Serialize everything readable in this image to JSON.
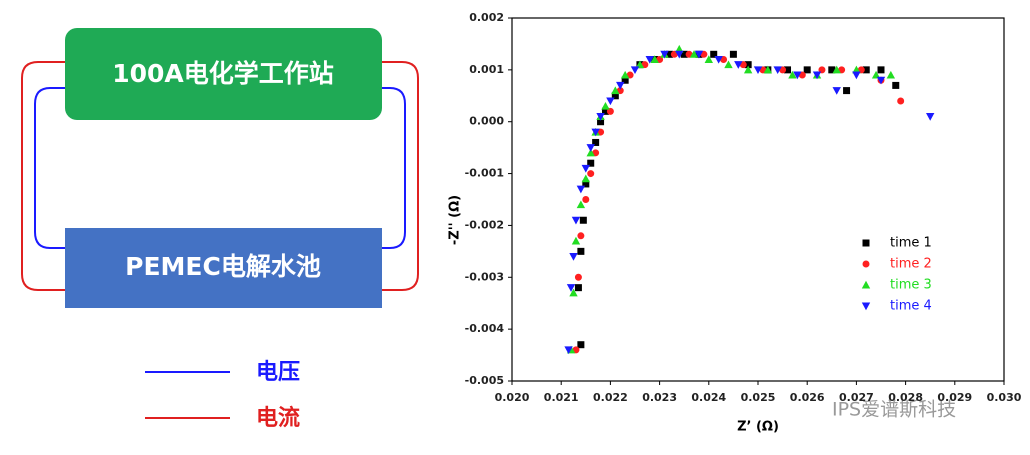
{
  "diagram": {
    "boxes": [
      "100A电化学工作站",
      "PEMEC电解水池"
    ],
    "legend": [
      "电压",
      "电流"
    ],
    "watermark": "IPS爱谱斯科技"
  },
  "chart_data": {
    "type": "scatter",
    "xlabel": "Z’  (Ω)",
    "ylabel": "-Z'' (Ω)",
    "xlim": [
      0.02,
      0.03
    ],
    "ylim": [
      -0.005,
      0.002
    ],
    "xticks": [
      {
        "value": 0.02,
        "label": "0.020"
      },
      0.021,
      0.022,
      0.023,
      0.024,
      0.025,
      0.026,
      0.027,
      0.028,
      0.029,
      {
        "value": 0.03,
        "label": "0.030"
      }
    ],
    "yticks": [
      -0.005,
      -0.004,
      -0.003,
      -0.002,
      -0.001,
      {
        "value": 0,
        "label": "0.000"
      },
      0.001,
      0.002
    ],
    "series": [
      {
        "name": "time 1",
        "color": "#000000",
        "marker": "square",
        "x": [
          0.0214,
          0.02135,
          0.0214,
          0.02145,
          0.0215,
          0.0216,
          0.0217,
          0.0218,
          0.0219,
          0.0221,
          0.0223,
          0.0226,
          0.0229,
          0.0232,
          0.0235,
          0.0238,
          0.0241,
          0.0245,
          0.0248,
          0.0252,
          0.0256,
          0.026,
          0.0265,
          0.0268,
          0.0272,
          0.0275,
          0.0278
        ],
        "values": [
          -0.0043,
          -0.0032,
          -0.0025,
          -0.0019,
          -0.0012,
          -0.0008,
          -0.0004,
          0.0,
          0.0002,
          0.0005,
          0.0008,
          0.0011,
          0.0012,
          0.0013,
          0.0013,
          0.0013,
          0.0013,
          0.0013,
          0.0011,
          0.001,
          0.001,
          0.001,
          0.001,
          0.0006,
          0.001,
          0.001,
          0.0007
        ]
      },
      {
        "name": "time 2",
        "color": "#ff2020",
        "marker": "circle",
        "x": [
          0.0213,
          0.02135,
          0.0214,
          0.0215,
          0.0216,
          0.0217,
          0.0218,
          0.022,
          0.0222,
          0.0224,
          0.0227,
          0.023,
          0.0233,
          0.0236,
          0.0239,
          0.0243,
          0.0247,
          0.0251,
          0.0255,
          0.0259,
          0.0263,
          0.0267,
          0.0271,
          0.0275,
          0.0279
        ],
        "values": [
          -0.0044,
          -0.003,
          -0.0022,
          -0.0015,
          -0.001,
          -0.0006,
          -0.0002,
          0.0002,
          0.0006,
          0.0009,
          0.0011,
          0.0012,
          0.0013,
          0.0013,
          0.0013,
          0.0012,
          0.0011,
          0.001,
          0.001,
          0.0009,
          0.001,
          0.001,
          0.001,
          0.0008,
          0.0004
        ]
      },
      {
        "name": "time 3",
        "color": "#22dd22",
        "marker": "triangle-up",
        "x": [
          0.0212,
          0.02125,
          0.0213,
          0.0214,
          0.0215,
          0.0216,
          0.0217,
          0.0218,
          0.0219,
          0.0221,
          0.0223,
          0.0226,
          0.0229,
          0.0231,
          0.0234,
          0.0237,
          0.024,
          0.0244,
          0.0248,
          0.0252,
          0.0257,
          0.0262,
          0.0266,
          0.027,
          0.0274,
          0.0277
        ],
        "values": [
          -0.0044,
          -0.0033,
          -0.0023,
          -0.0016,
          -0.0011,
          -0.0006,
          -0.0002,
          0.0001,
          0.0003,
          0.0006,
          0.0009,
          0.0011,
          0.0012,
          0.0013,
          0.0014,
          0.0013,
          0.0012,
          0.0011,
          0.001,
          0.001,
          0.0009,
          0.0009,
          0.001,
          0.001,
          0.0009,
          0.0009
        ]
      },
      {
        "name": "time 4",
        "color": "#1a1aff",
        "marker": "triangle-down",
        "x": [
          0.02115,
          0.0212,
          0.02125,
          0.0213,
          0.0214,
          0.0215,
          0.0216,
          0.0217,
          0.0218,
          0.022,
          0.0222,
          0.0225,
          0.0228,
          0.0231,
          0.0234,
          0.0238,
          0.0242,
          0.0246,
          0.025,
          0.0254,
          0.0258,
          0.0262,
          0.0266,
          0.027,
          0.0275,
          0.0285
        ],
        "values": [
          -0.0044,
          -0.0032,
          -0.0026,
          -0.0019,
          -0.0013,
          -0.0009,
          -0.0005,
          -0.0002,
          0.0001,
          0.0004,
          0.0007,
          0.001,
          0.0012,
          0.0013,
          0.0013,
          0.0013,
          0.0012,
          0.0011,
          0.001,
          0.001,
          0.0009,
          0.0009,
          0.0006,
          0.0009,
          0.0008,
          0.0001
        ]
      }
    ]
  }
}
